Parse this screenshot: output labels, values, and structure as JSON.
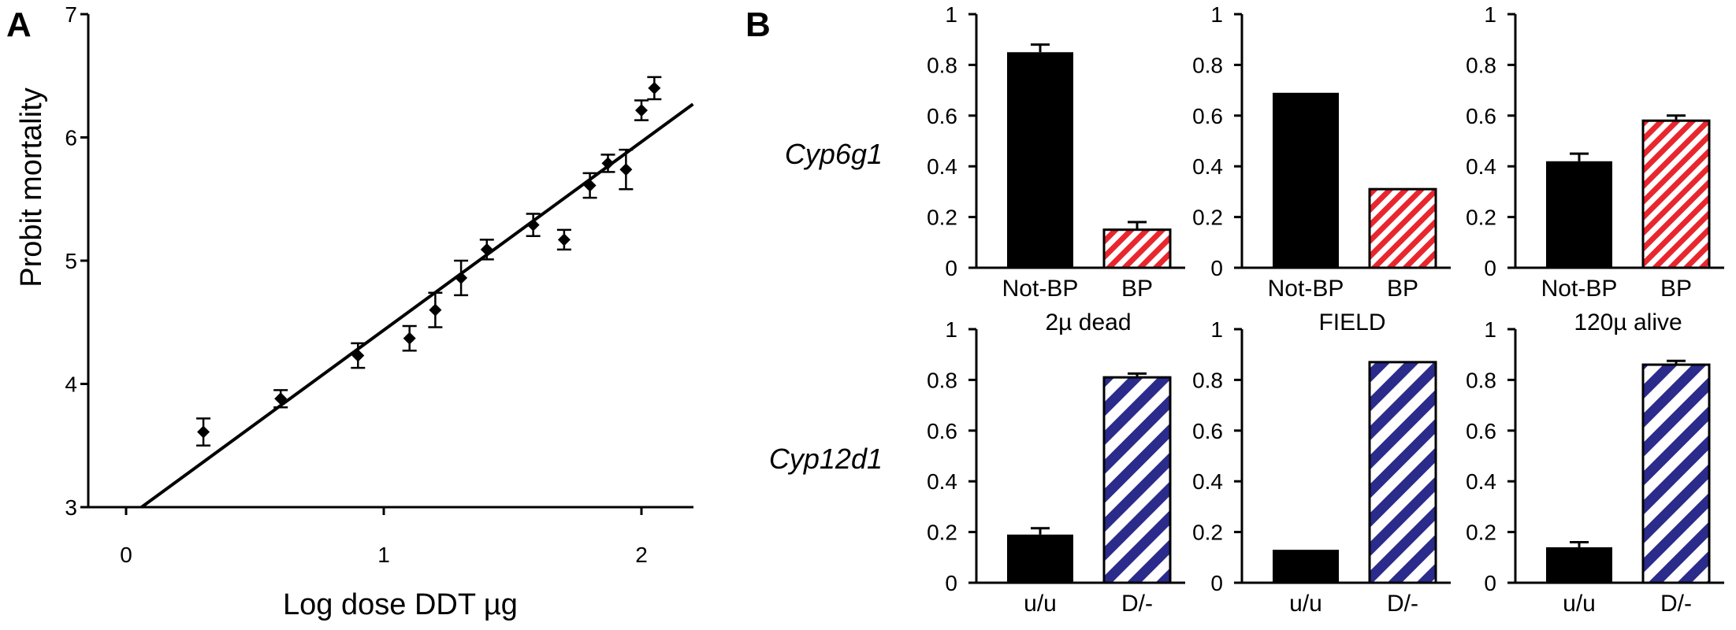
{
  "panels": {
    "a": "A",
    "b": "B"
  },
  "colors": {
    "black": "#000000",
    "red": "#e8262e",
    "blue": "#2b2b8c",
    "white": "#ffffff"
  },
  "chart_data": [
    {
      "type": "scatter",
      "panel": "A",
      "xlabel": "Log dose DDT µg",
      "ylabel": "Probit mortality",
      "xlim": [
        0,
        2.2
      ],
      "ylim": [
        3,
        7
      ],
      "xticks": [
        "0",
        "1",
        "2"
      ],
      "yticks": [
        "3",
        "4",
        "5",
        "6",
        "7"
      ],
      "points": [
        {
          "x": 0.3,
          "y": 3.61,
          "err": 0.11
        },
        {
          "x": 0.6,
          "y": 3.88,
          "err": 0.07
        },
        {
          "x": 0.9,
          "y": 4.23,
          "err": 0.1
        },
        {
          "x": 1.1,
          "y": 4.37,
          "err": 0.1
        },
        {
          "x": 1.2,
          "y": 4.6,
          "err": 0.14
        },
        {
          "x": 1.3,
          "y": 4.86,
          "err": 0.14
        },
        {
          "x": 1.4,
          "y": 5.09,
          "err": 0.08
        },
        {
          "x": 1.58,
          "y": 5.29,
          "err": 0.09
        },
        {
          "x": 1.7,
          "y": 5.17,
          "err": 0.08
        },
        {
          "x": 1.8,
          "y": 5.61,
          "err": 0.1
        },
        {
          "x": 1.87,
          "y": 5.79,
          "err": 0.07
        },
        {
          "x": 1.94,
          "y": 5.74,
          "err": 0.16
        },
        {
          "x": 2.0,
          "y": 6.22,
          "err": 0.08
        },
        {
          "x": 2.05,
          "y": 6.4,
          "err": 0.09
        }
      ],
      "fit_line": {
        "x": [
          0.06,
          2.2
        ],
        "y": [
          3.0,
          6.27
        ]
      }
    },
    {
      "type": "bar",
      "panel": "B",
      "row": "Cyp6g1",
      "column": "2µ dead",
      "categories": [
        "Not-BP",
        "BP"
      ],
      "values": [
        0.85,
        0.15
      ],
      "errors": [
        0.03,
        0.03
      ],
      "ylim": [
        0,
        1
      ],
      "yticks": [
        "0",
        "0.2",
        "0.4",
        "0.6",
        "0.8",
        "1"
      ]
    },
    {
      "type": "bar",
      "panel": "B",
      "row": "Cyp6g1",
      "column": "FIELD",
      "categories": [
        "Not-BP",
        "BP"
      ],
      "values": [
        0.69,
        0.31
      ],
      "errors": [
        0,
        0
      ],
      "ylim": [
        0,
        1
      ],
      "yticks": [
        "0",
        "0.2",
        "0.4",
        "0.6",
        "0.8",
        "1"
      ]
    },
    {
      "type": "bar",
      "panel": "B",
      "row": "Cyp6g1",
      "column": "120µ alive",
      "categories": [
        "Not-BP",
        "BP"
      ],
      "values": [
        0.42,
        0.58
      ],
      "errors": [
        0.03,
        0.02
      ],
      "ylim": [
        0,
        1
      ],
      "yticks": [
        "0",
        "0.2",
        "0.4",
        "0.6",
        "0.8",
        "1"
      ]
    },
    {
      "type": "bar",
      "panel": "B",
      "row": "Cyp12d1",
      "column": "2µ dead",
      "categories": [
        "u/u",
        "D/-"
      ],
      "values": [
        0.19,
        0.81
      ],
      "errors": [
        0.025,
        0.015
      ],
      "ylim": [
        0,
        1
      ],
      "yticks": [
        "0",
        "0.2",
        "0.4",
        "0.6",
        "0.8",
        "1"
      ]
    },
    {
      "type": "bar",
      "panel": "B",
      "row": "Cyp12d1",
      "column": "FIELD",
      "categories": [
        "u/u",
        "D/-"
      ],
      "values": [
        0.13,
        0.87
      ],
      "errors": [
        0,
        0
      ],
      "ylim": [
        0,
        1
      ],
      "yticks": [
        "0",
        "0.2",
        "0.4",
        "0.6",
        "0.8",
        "1"
      ]
    },
    {
      "type": "bar",
      "panel": "B",
      "row": "Cyp12d1",
      "column": "120µ alive",
      "categories": [
        "u/u",
        "D/-"
      ],
      "values": [
        0.14,
        0.86
      ],
      "errors": [
        0.02,
        0.015
      ],
      "ylim": [
        0,
        1
      ],
      "yticks": [
        "0",
        "0.2",
        "0.4",
        "0.6",
        "0.8",
        "1"
      ]
    }
  ]
}
